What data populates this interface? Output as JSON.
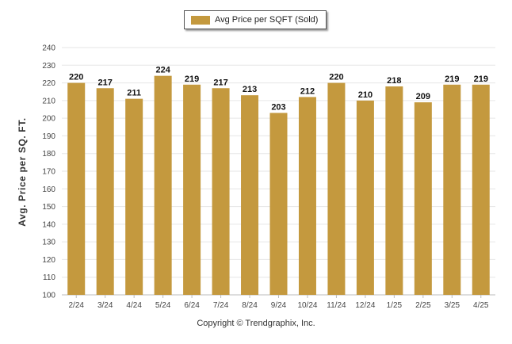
{
  "legend": {
    "label": "Avg Price per SQFT (Sold)",
    "color": "#c4993e"
  },
  "copyright": "Copyright © Trendgraphix, Inc.",
  "chart_data": {
    "type": "bar",
    "categories": [
      "2/24",
      "3/24",
      "4/24",
      "5/24",
      "6/24",
      "7/24",
      "8/24",
      "9/24",
      "10/24",
      "11/24",
      "12/24",
      "1/25",
      "2/25",
      "3/25",
      "4/25"
    ],
    "series": [
      {
        "name": "Avg Price per SQFT (Sold)",
        "values": [
          220,
          217,
          211,
          224,
          219,
          217,
          213,
          203,
          212,
          220,
          210,
          218,
          209,
          219,
          219
        ]
      }
    ],
    "ylabel": "Avg. Price per SQ. FT.",
    "xlabel": "",
    "ylim": [
      100,
      240
    ],
    "yticks": [
      100,
      110,
      120,
      130,
      140,
      150,
      160,
      170,
      180,
      190,
      200,
      210,
      220,
      230,
      240
    ],
    "grid": true,
    "legend_position": "top-center",
    "data_labels": true,
    "bar_color": "#c4993e"
  }
}
